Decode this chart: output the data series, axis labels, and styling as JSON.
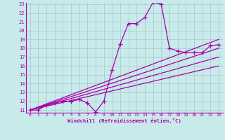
{
  "xlabel": "Windchill (Refroidissement éolien,°C)",
  "xlim": [
    0,
    23
  ],
  "ylim": [
    11,
    23
  ],
  "yticks": [
    11,
    12,
    13,
    14,
    15,
    16,
    17,
    18,
    19,
    20,
    21,
    22,
    23
  ],
  "xticks": [
    0,
    1,
    2,
    3,
    4,
    5,
    6,
    7,
    8,
    9,
    10,
    11,
    12,
    13,
    14,
    15,
    16,
    17,
    18,
    19,
    20,
    21,
    22,
    23
  ],
  "bg_color": "#c9eaea",
  "grid_color": "#aacece",
  "line_color": "#aa00aa",
  "series": [
    [
      0,
      11
    ],
    [
      1,
      11
    ],
    [
      2,
      11.6
    ],
    [
      3,
      11.8
    ],
    [
      4,
      12.0
    ],
    [
      5,
      12.0
    ],
    [
      6,
      12.2
    ],
    [
      7,
      11.8
    ],
    [
      8,
      10.8
    ],
    [
      9,
      12.0
    ],
    [
      10,
      15.5
    ],
    [
      11,
      18.5
    ],
    [
      12,
      20.8
    ],
    [
      13,
      20.8
    ],
    [
      14,
      21.5
    ],
    [
      15,
      23.2
    ],
    [
      16,
      23.0
    ],
    [
      17,
      18.0
    ],
    [
      18,
      17.7
    ],
    [
      19,
      17.5
    ],
    [
      20,
      17.5
    ],
    [
      21,
      17.5
    ],
    [
      22,
      18.3
    ],
    [
      23,
      18.4
    ]
  ],
  "diagonal_lines": [
    {
      "x": [
        0,
        23
      ],
      "y": [
        11,
        19.0
      ]
    },
    {
      "x": [
        0,
        23
      ],
      "y": [
        11,
        18.0
      ]
    },
    {
      "x": [
        0,
        23
      ],
      "y": [
        11,
        17.0
      ]
    },
    {
      "x": [
        0,
        23
      ],
      "y": [
        11,
        16.0
      ]
    }
  ],
  "marker": "+",
  "markersize": 4,
  "linewidth": 0.9
}
